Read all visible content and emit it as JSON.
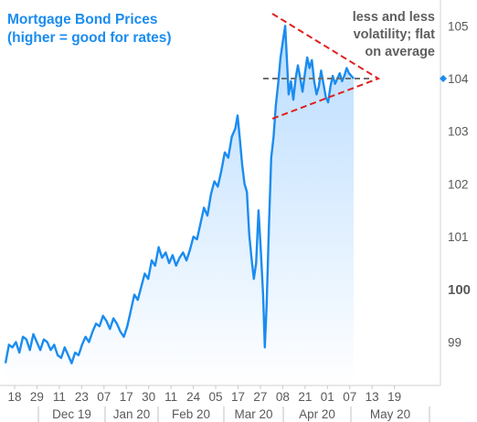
{
  "chart_data": {
    "type": "line",
    "title": "Mortgage Bond Prices",
    "subtitle": "(higher = good for rates)",
    "annotation_lines": [
      "less and less",
      "volatility; flat",
      "on average"
    ],
    "current_value_marker": 104,
    "y_ticks": [
      99,
      100,
      101,
      102,
      103,
      104,
      105
    ],
    "y_tick_labels": [
      "99",
      "100",
      "101",
      "102",
      "103",
      "104",
      "105"
    ],
    "ylim": [
      98.35,
      105.25
    ],
    "x_tick_labels": [
      "18",
      "29",
      "11",
      "23",
      "07",
      "17",
      "30",
      "11",
      "24",
      "05",
      "17",
      "27",
      "08",
      "21",
      "01",
      "07",
      "13",
      "19"
    ],
    "month_labels": [
      "Dec 19",
      "Jan 20",
      "Feb 20",
      "Mar 20",
      "Apr 20",
      "May 20"
    ],
    "grid": false,
    "colors": {
      "line": "#1a8cf0",
      "fill_top": "#b9dcff",
      "fill_bottom": "#ffffff",
      "annotation": "#e02020",
      "average": "#707070",
      "title": "#1a8cf0",
      "axis_text": "#595959"
    },
    "series": [
      {
        "values": [
          [
            0,
            98.6
          ],
          [
            3,
            98.95
          ],
          [
            6,
            98.9
          ],
          [
            9,
            99.0
          ],
          [
            12,
            98.8
          ],
          [
            15,
            99.1
          ],
          [
            18,
            99.05
          ],
          [
            21,
            98.85
          ],
          [
            24,
            99.15
          ],
          [
            27,
            99.0
          ],
          [
            30,
            98.85
          ],
          [
            33,
            99.05
          ],
          [
            36,
            99.0
          ],
          [
            39,
            98.85
          ],
          [
            42,
            98.95
          ],
          [
            45,
            98.75
          ],
          [
            48,
            98.7
          ],
          [
            51,
            98.9
          ],
          [
            54,
            98.75
          ],
          [
            57,
            98.6
          ],
          [
            60,
            98.8
          ],
          [
            63,
            98.75
          ],
          [
            66,
            98.95
          ],
          [
            69,
            99.1
          ],
          [
            72,
            99.0
          ],
          [
            75,
            99.2
          ],
          [
            78,
            99.35
          ],
          [
            81,
            99.3
          ],
          [
            84,
            99.5
          ],
          [
            87,
            99.4
          ],
          [
            90,
            99.25
          ],
          [
            93,
            99.45
          ],
          [
            96,
            99.35
          ],
          [
            99,
            99.2
          ],
          [
            102,
            99.1
          ],
          [
            105,
            99.3
          ],
          [
            108,
            99.6
          ],
          [
            111,
            99.9
          ],
          [
            114,
            99.8
          ],
          [
            117,
            100.05
          ],
          [
            120,
            100.3
          ],
          [
            123,
            100.2
          ],
          [
            126,
            100.55
          ],
          [
            129,
            100.45
          ],
          [
            132,
            100.8
          ],
          [
            135,
            100.6
          ],
          [
            138,
            100.7
          ],
          [
            141,
            100.5
          ],
          [
            144,
            100.65
          ],
          [
            147,
            100.45
          ],
          [
            150,
            100.6
          ],
          [
            153,
            100.7
          ],
          [
            156,
            100.55
          ],
          [
            159,
            100.75
          ],
          [
            162,
            101.0
          ],
          [
            165,
            100.95
          ],
          [
            168,
            101.25
          ],
          [
            171,
            101.55
          ],
          [
            174,
            101.4
          ],
          [
            177,
            101.8
          ],
          [
            180,
            102.05
          ],
          [
            183,
            101.95
          ],
          [
            186,
            102.25
          ],
          [
            189,
            102.6
          ],
          [
            192,
            102.5
          ],
          [
            195,
            102.9
          ],
          [
            198,
            103.05
          ],
          [
            200,
            103.3
          ],
          [
            202,
            102.85
          ],
          [
            204,
            102.35
          ],
          [
            206,
            102.0
          ],
          [
            208,
            101.85
          ],
          [
            210,
            101.05
          ],
          [
            212,
            100.6
          ],
          [
            214,
            100.2
          ],
          [
            216,
            100.5
          ],
          [
            218,
            101.5
          ],
          [
            220,
            100.75
          ],
          [
            222,
            99.9
          ],
          [
            223.5,
            98.9
          ],
          [
            225,
            99.7
          ],
          [
            227,
            101.2
          ],
          [
            229,
            102.5
          ],
          [
            231,
            102.9
          ],
          [
            233,
            103.5
          ],
          [
            235,
            103.9
          ],
          [
            237,
            104.4
          ],
          [
            239,
            104.7
          ],
          [
            241,
            105.0
          ],
          [
            242.5,
            104.35
          ],
          [
            244,
            103.7
          ],
          [
            246,
            103.95
          ],
          [
            248,
            103.6
          ],
          [
            250,
            104.0
          ],
          [
            252,
            104.25
          ],
          [
            254,
            104.0
          ],
          [
            256,
            103.75
          ],
          [
            258,
            104.1
          ],
          [
            260,
            104.4
          ],
          [
            262,
            104.2
          ],
          [
            264,
            104.35
          ],
          [
            266,
            103.95
          ],
          [
            268,
            103.7
          ],
          [
            270,
            103.85
          ],
          [
            272,
            104.15
          ],
          [
            274,
            103.9
          ],
          [
            276,
            103.65
          ],
          [
            278,
            103.55
          ],
          [
            280,
            103.85
          ],
          [
            282,
            104.05
          ],
          [
            284,
            103.9
          ],
          [
            286,
            104.0
          ],
          [
            288,
            104.1
          ],
          [
            290,
            103.95
          ],
          [
            292,
            104.05
          ],
          [
            294,
            104.2
          ],
          [
            296,
            104.1
          ],
          [
            298,
            104.05
          ],
          [
            300,
            104.0
          ]
        ]
      }
    ]
  }
}
